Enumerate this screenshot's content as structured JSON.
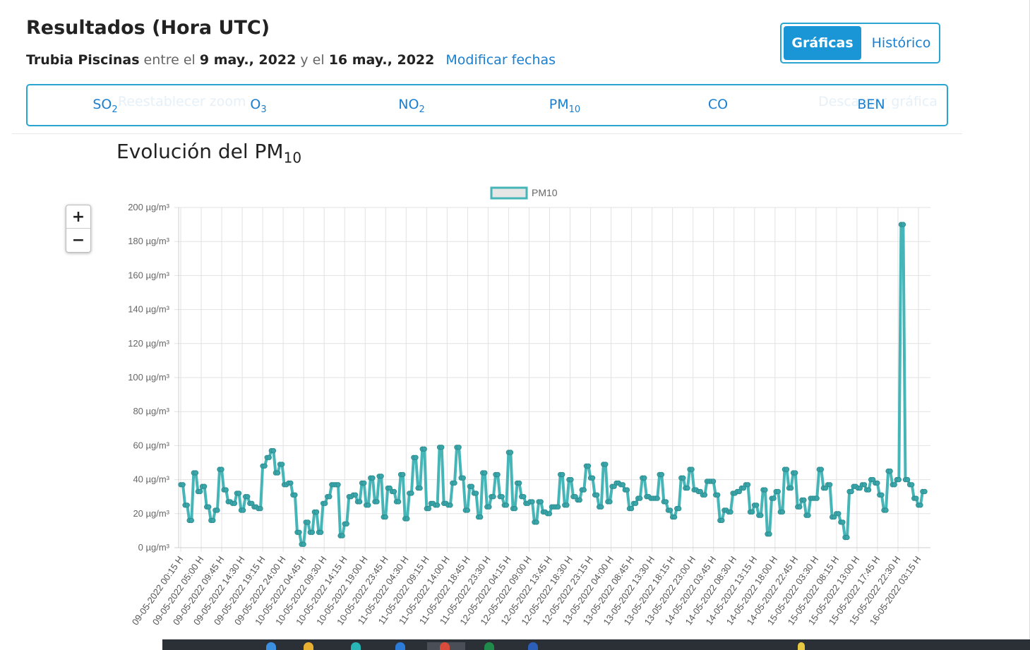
{
  "header": {
    "title": "Resultados (Hora UTC)",
    "station": "Trubia Piscinas",
    "between": "entre el",
    "date_from": "9 may., 2022",
    "and": "y el",
    "date_to": "16 may., 2022",
    "modify_link": "Modificar fechas"
  },
  "view_toggle": {
    "graphs_label": "Gráficas",
    "history_label": "Histórico"
  },
  "pollutant_tabs": [
    {
      "label": "SO",
      "sub": "2"
    },
    {
      "label": "O",
      "sub": "3"
    },
    {
      "label": "NO",
      "sub": "2"
    },
    {
      "label": "PM",
      "sub": "10"
    },
    {
      "label": "CO",
      "sub": ""
    },
    {
      "label": "BEN",
      "sub": ""
    }
  ],
  "ghost_buttons": {
    "reset_zoom": "Reestablecer zoom",
    "download": "Descargar gráfica"
  },
  "chart_title": {
    "text": "Evolución del PM",
    "sub": "10"
  },
  "zoom_controls": {
    "zoom_in": "+",
    "zoom_out": "−"
  },
  "colors": {
    "series": "#45b5b8",
    "accent": "#1a96d6",
    "link": "#1a7fd0",
    "border": "#2aa5cf"
  },
  "chart_data": {
    "type": "line",
    "title": "Evolución del PM10",
    "series": [
      {
        "name": "PM10",
        "values": [
          37,
          37,
          25,
          25,
          16,
          16,
          44,
          44,
          33,
          33,
          36,
          36,
          24,
          24,
          16,
          16,
          22,
          22,
          46,
          46,
          34,
          34,
          27,
          27,
          26,
          26,
          32,
          32,
          22,
          22,
          30,
          30,
          26,
          26,
          24,
          24,
          23,
          23,
          48,
          48,
          53,
          53,
          57,
          57,
          44,
          44,
          49,
          49,
          37,
          37,
          38,
          38,
          31,
          31,
          9,
          9,
          2,
          2,
          15,
          15,
          9,
          9,
          21,
          21,
          9,
          9,
          26,
          26,
          30,
          30,
          37,
          37,
          37,
          37,
          7,
          7,
          14,
          14,
          30,
          30,
          31,
          31,
          27,
          27,
          38,
          38,
          25,
          25,
          41,
          41,
          27,
          27,
          42,
          42,
          18,
          18,
          35,
          35,
          33,
          33,
          27,
          27,
          43,
          43,
          17,
          17,
          32,
          32,
          53,
          53,
          35,
          35,
          58,
          58,
          23,
          23,
          26,
          26,
          25,
          25,
          59,
          59,
          26,
          26,
          25,
          25,
          38,
          38,
          59,
          59,
          41,
          41,
          22,
          22,
          36,
          36,
          32,
          32,
          18,
          18,
          44,
          44,
          24,
          24,
          30,
          30,
          43,
          43,
          30,
          30,
          25,
          25,
          56,
          56,
          23,
          23,
          38,
          38,
          30,
          30,
          26,
          26,
          27,
          27,
          15,
          15,
          27,
          27,
          21,
          21,
          20,
          20,
          24,
          24,
          24,
          24,
          43,
          43,
          25,
          25,
          40,
          40,
          30,
          30,
          28,
          28,
          34,
          34,
          48,
          48,
          41,
          41,
          31,
          31,
          24,
          24,
          49,
          49,
          27,
          27,
          36,
          36,
          38,
          38,
          37,
          37,
          34,
          34,
          23,
          23,
          26,
          26,
          29,
          29,
          41,
          41,
          30,
          30,
          29,
          29,
          29,
          29,
          43,
          43,
          27,
          27,
          22,
          22,
          18,
          18,
          23,
          23,
          41,
          41,
          35,
          35,
          46,
          46,
          34,
          34,
          33,
          33,
          31,
          31,
          39,
          39,
          39,
          39,
          31,
          31,
          16,
          16,
          22,
          22,
          21,
          21,
          32,
          32,
          33,
          33,
          35,
          35,
          37,
          37,
          21,
          21,
          25,
          25,
          19,
          19,
          34,
          34,
          8,
          8,
          29,
          29,
          33,
          33,
          21,
          21,
          46,
          46,
          35,
          35,
          44,
          44,
          24,
          24,
          28,
          28,
          19,
          19,
          29,
          29,
          29,
          29,
          46,
          46,
          35,
          35,
          37,
          37,
          18,
          18,
          20,
          20,
          15,
          15,
          6,
          6,
          33,
          33,
          36,
          36,
          35,
          35,
          37,
          37,
          34,
          34,
          40,
          40,
          38,
          38,
          31,
          31,
          22,
          22,
          45,
          45,
          37,
          37,
          40,
          40,
          190,
          190,
          40,
          40,
          37,
          37,
          29,
          29,
          25,
          25,
          33,
          33
        ]
      }
    ],
    "x_tick_labels": [
      "09-05-2022 00:15 H",
      "09-05-2022 05:00 H",
      "09-05-2022 09:45 H",
      "09-05-2022 14:30 H",
      "09-05-2022 19:15 H",
      "09-05-2022 24:00 H",
      "10-05-2022 04:45 H",
      "10-05-2022 09:30 H",
      "10-05-2022 14:15 H",
      "10-05-2022 19:00 H",
      "10-05-2022 23:45 H",
      "11-05-2022 04:30 H",
      "11-05-2022 09:15 H",
      "11-05-2022 14:00 H",
      "11-05-2022 18:45 H",
      "11-05-2022 23:30 H",
      "12-05-2022 04:15 H",
      "12-05-2022 09:00 H",
      "12-05-2022 13:45 H",
      "12-05-2022 18:30 H",
      "12-05-2022 23:15 H",
      "13-05-2022 04:00 H",
      "13-05-2022 08:45 H",
      "13-05-2022 13:30 H",
      "13-05-2022 18:15 H",
      "13-05-2022 23:00 H",
      "14-05-2022 03:45 H",
      "14-05-2022 08:30 H",
      "14-05-2022 13:15 H",
      "14-05-2022 18:00 H",
      "14-05-2022 22:45 H",
      "15-05-2022 03:30 H",
      "15-05-2022 08:15 H",
      "15-05-2022 13:00 H",
      "15-05-2022 17:45 H",
      "15-05-2022 22:30 H",
      "16-05-2022 03:15 H"
    ],
    "y_ticks": [
      0,
      20,
      40,
      60,
      80,
      100,
      120,
      140,
      160,
      180,
      200
    ],
    "y_unit": "µg/m³",
    "ylim": [
      0,
      200
    ],
    "grid": true,
    "legend": "top-center"
  }
}
